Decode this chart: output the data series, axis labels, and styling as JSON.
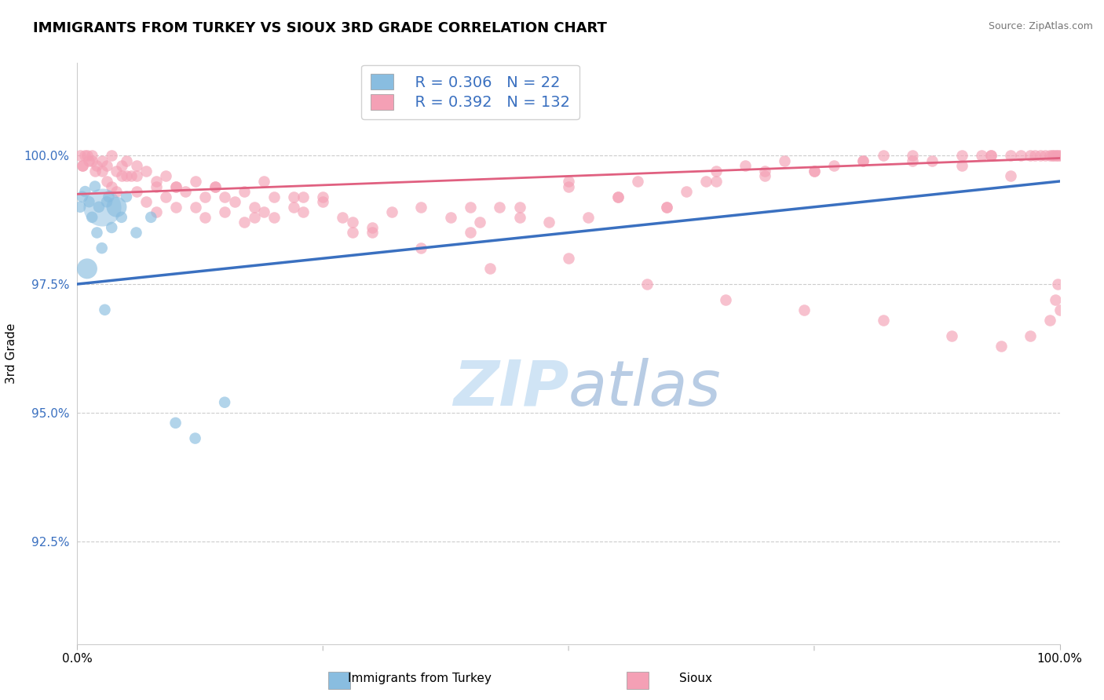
{
  "title": "IMMIGRANTS FROM TURKEY VS SIOUX 3RD GRADE CORRELATION CHART",
  "source_text": "Source: ZipAtlas.com",
  "ylabel": "3rd Grade",
  "xmin": 0.0,
  "xmax": 100.0,
  "ymin": 90.5,
  "ymax": 101.8,
  "yticks": [
    92.5,
    95.0,
    97.5,
    100.0
  ],
  "ytick_labels": [
    "92.5%",
    "95.0%",
    "97.5%",
    "100.0%"
  ],
  "legend_R_blue": "R = 0.306",
  "legend_N_blue": "N = 22",
  "legend_R_pink": "R = 0.392",
  "legend_N_pink": "N = 132",
  "color_blue": "#89BDE0",
  "color_pink": "#F4A0B5",
  "color_line_blue": "#3A70C0",
  "color_line_pink": "#E06080",
  "watermark_color": "#D0E4F5",
  "background_color": "#FFFFFF",
  "blue_points_x": [
    0.3,
    0.5,
    0.8,
    1.0,
    1.2,
    1.5,
    1.8,
    2.0,
    2.2,
    2.5,
    2.8,
    3.0,
    3.2,
    3.5,
    4.0,
    4.5,
    5.0,
    6.0,
    7.5,
    10.0,
    12.0,
    15.0
  ],
  "blue_points_y": [
    99.0,
    99.2,
    99.3,
    97.8,
    99.1,
    98.8,
    99.4,
    98.5,
    99.0,
    98.2,
    97.0,
    99.1,
    99.2,
    98.6,
    99.0,
    98.8,
    99.2,
    98.5,
    98.8,
    94.8,
    94.5,
    95.2
  ],
  "blue_sizes_rel": [
    1,
    1,
    1,
    2,
    1,
    1,
    1,
    1,
    1,
    1,
    1,
    1,
    1,
    1,
    2,
    1,
    1,
    1,
    1,
    1,
    1,
    1
  ],
  "pink_points_x": [
    0.3,
    0.5,
    0.8,
    1.0,
    1.2,
    1.5,
    1.8,
    2.0,
    2.5,
    3.0,
    3.5,
    4.0,
    4.5,
    5.0,
    5.5,
    6.0,
    7.0,
    8.0,
    9.0,
    10.0,
    11.0,
    12.0,
    13.0,
    14.0,
    15.0,
    16.0,
    17.0,
    18.0,
    19.0,
    20.0,
    22.0,
    23.0,
    25.0,
    27.0,
    28.0,
    30.0,
    32.0,
    35.0,
    38.0,
    40.0,
    41.0,
    43.0,
    45.0,
    48.0,
    50.0,
    52.0,
    55.0,
    57.0,
    60.0,
    62.0,
    64.0,
    65.0,
    68.0,
    70.0,
    72.0,
    75.0,
    77.0,
    80.0,
    82.0,
    85.0,
    87.0,
    90.0,
    92.0,
    93.0,
    95.0,
    96.0,
    97.0,
    97.5,
    98.0,
    98.5,
    99.0,
    99.2,
    99.4,
    99.6,
    99.8,
    100.0,
    3.0,
    5.0,
    8.0,
    12.0,
    18.0,
    22.0,
    30.0,
    40.0,
    50.0,
    60.0,
    70.0,
    80.0,
    90.0,
    95.0,
    4.0,
    7.0,
    10.0,
    15.0,
    20.0,
    25.0,
    6.0,
    9.0,
    14.0,
    19.0,
    0.5,
    1.5,
    2.5,
    3.5,
    4.5,
    6.0,
    8.0,
    10.0,
    13.0,
    17.0,
    23.0,
    28.0,
    35.0,
    42.0,
    50.0,
    58.0,
    66.0,
    74.0,
    82.0,
    89.0,
    94.0,
    97.0,
    99.0,
    99.5,
    99.8,
    100.0,
    45.0,
    55.0,
    65.0,
    75.0,
    85.0,
    93.0
  ],
  "pink_points_y": [
    100.0,
    99.8,
    100.0,
    100.0,
    99.9,
    100.0,
    99.7,
    99.8,
    99.9,
    99.8,
    100.0,
    99.7,
    99.8,
    99.9,
    99.6,
    99.8,
    99.7,
    99.5,
    99.6,
    99.4,
    99.3,
    99.5,
    99.2,
    99.4,
    99.2,
    99.1,
    99.3,
    99.0,
    98.9,
    99.2,
    99.0,
    98.9,
    99.1,
    98.8,
    98.7,
    98.6,
    98.9,
    99.0,
    98.8,
    98.5,
    98.7,
    99.0,
    98.8,
    98.7,
    99.4,
    98.8,
    99.2,
    99.5,
    99.0,
    99.3,
    99.5,
    99.7,
    99.8,
    99.6,
    99.9,
    99.7,
    99.8,
    99.9,
    100.0,
    100.0,
    99.9,
    100.0,
    100.0,
    100.0,
    100.0,
    100.0,
    100.0,
    100.0,
    100.0,
    100.0,
    100.0,
    100.0,
    100.0,
    100.0,
    100.0,
    100.0,
    99.5,
    99.6,
    99.4,
    99.0,
    98.8,
    99.2,
    98.5,
    99.0,
    99.5,
    99.0,
    99.7,
    99.9,
    99.8,
    99.6,
    99.3,
    99.1,
    99.4,
    98.9,
    98.8,
    99.2,
    99.6,
    99.2,
    99.4,
    99.5,
    99.8,
    99.9,
    99.7,
    99.4,
    99.6,
    99.3,
    98.9,
    99.0,
    98.8,
    98.7,
    99.2,
    98.5,
    98.2,
    97.8,
    98.0,
    97.5,
    97.2,
    97.0,
    96.8,
    96.5,
    96.3,
    96.5,
    96.8,
    97.2,
    97.5,
    97.0,
    99.0,
    99.2,
    99.5,
    99.7,
    99.9,
    100.0
  ]
}
